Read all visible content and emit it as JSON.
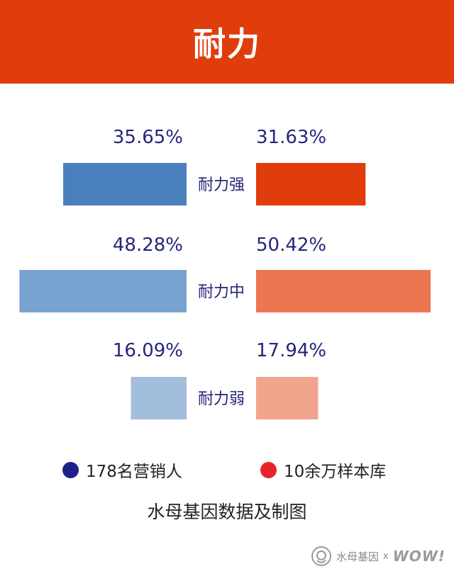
{
  "header": {
    "title": "耐力"
  },
  "chart_data": {
    "type": "bar",
    "categories": [
      "耐力强",
      "耐力中",
      "耐力弱"
    ],
    "series": [
      {
        "name": "178名营销人",
        "values": [
          35.65,
          48.28,
          16.09
        ],
        "labels": [
          "35.65%",
          "48.28%",
          "16.09%"
        ],
        "colors": [
          "#4a7fbd",
          "#78a2d0",
          "#a3bddd"
        ]
      },
      {
        "name": "10余万样本库",
        "values": [
          31.63,
          50.42,
          17.94
        ],
        "labels": [
          "31.63%",
          "50.42%",
          "17.94%"
        ],
        "colors": [
          "#e03c0c",
          "#ec7651",
          "#f2a58d"
        ]
      }
    ],
    "title": "耐力",
    "xlabel": "",
    "ylabel": "",
    "xlim": [
      0,
      50.42
    ]
  },
  "legend": {
    "items": [
      {
        "label": "178名营销人",
        "color": "#1f1f8a"
      },
      {
        "label": "10余万样本库",
        "color": "#e8242a"
      }
    ]
  },
  "caption": "水母基因数据及制图",
  "footer": {
    "brand": "水母基因",
    "separator": "x",
    "partner": "WOW!"
  },
  "colors": {
    "label_text": "#26267a",
    "header_bg": "#e03c0c"
  }
}
